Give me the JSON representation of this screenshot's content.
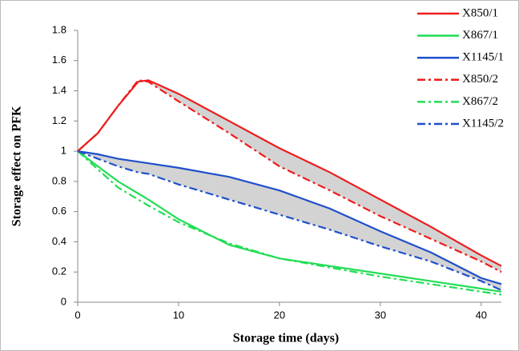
{
  "chart_data": {
    "type": "line",
    "x_label": "Storage time (days)",
    "y_label": "Storage effect on PFK",
    "x": [
      0,
      2,
      4,
      6,
      7,
      10,
      15,
      20,
      25,
      30,
      35,
      40,
      42
    ],
    "series": [
      {
        "name": "X850/1",
        "color": "#ee1c1c",
        "dash": "solid",
        "values": [
          1,
          1.12,
          1.3,
          1.46,
          1.47,
          1.38,
          1.2,
          1.02,
          0.86,
          0.68,
          0.5,
          0.31,
          0.24
        ]
      },
      {
        "name": "X867/1",
        "color": "#22dd55",
        "dash": "solid",
        "values": [
          1,
          0.9,
          0.8,
          0.72,
          0.68,
          0.55,
          0.38,
          0.29,
          0.24,
          0.19,
          0.14,
          0.09,
          0.07
        ]
      },
      {
        "name": "X1145/1",
        "color": "#1f4fcc",
        "dash": "solid",
        "values": [
          1,
          0.98,
          0.95,
          0.93,
          0.92,
          0.89,
          0.83,
          0.74,
          0.62,
          0.47,
          0.33,
          0.16,
          0.12
        ]
      },
      {
        "name": "X850/2",
        "color": "#ee1c1c",
        "dash": "dashdot",
        "values": [
          1,
          1.12,
          1.3,
          1.47,
          1.46,
          1.33,
          1.12,
          0.9,
          0.74,
          0.57,
          0.42,
          0.27,
          0.2
        ]
      },
      {
        "name": "X867/2",
        "color": "#22dd55",
        "dash": "dashdot",
        "values": [
          1,
          0.88,
          0.76,
          0.68,
          0.64,
          0.53,
          0.39,
          0.29,
          0.23,
          0.17,
          0.12,
          0.07,
          0.05
        ]
      },
      {
        "name": "X1145/2",
        "color": "#1f4fcc",
        "dash": "dashdot",
        "values": [
          1,
          0.95,
          0.9,
          0.86,
          0.85,
          0.78,
          0.68,
          0.58,
          0.48,
          0.37,
          0.27,
          0.14,
          0.08
        ]
      }
    ],
    "shade_between": [
      [
        0,
        3
      ],
      [
        2,
        5
      ]
    ],
    "shade_color": "#d3d3d3",
    "xlim": [
      0,
      42
    ],
    "xticks": [
      0,
      10,
      20,
      30,
      40
    ],
    "ylim": [
      0,
      1.8
    ],
    "yticks": [
      0,
      0.2,
      0.4,
      0.6,
      0.8,
      1,
      1.2,
      1.4,
      1.6,
      1.8
    ],
    "grid": false,
    "legend": "upper right"
  }
}
